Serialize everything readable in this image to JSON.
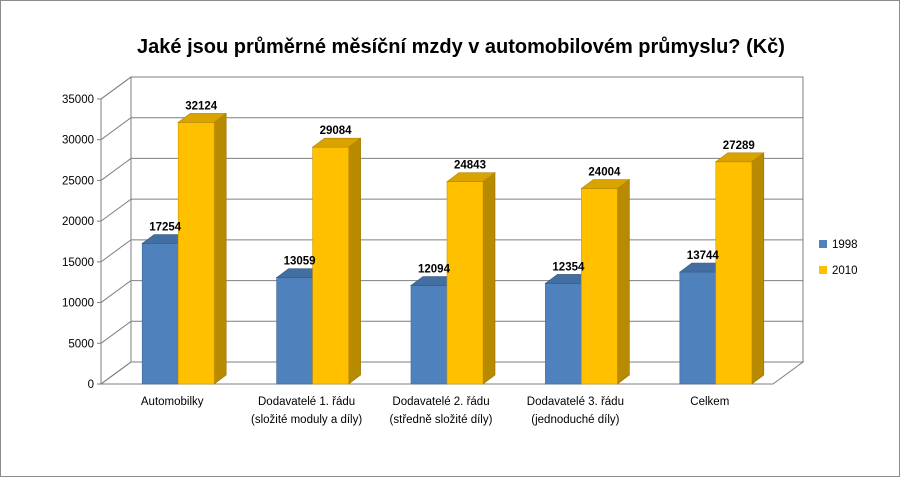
{
  "chart_data": {
    "type": "bar",
    "title": "Jaké jsou průměrné měsíční mzdy v automobilovém průmyslu? (Kč)",
    "categories": [
      [
        "Automobilky"
      ],
      [
        "Dodavatelé 1. řádu",
        "(složité moduly a díly)"
      ],
      [
        "Dodavatelé 2. řádu",
        "(středně složité díly)"
      ],
      [
        "Dodavatelé 3. řádu",
        "(jednoduché díly)"
      ],
      [
        "Celkem"
      ]
    ],
    "series": [
      {
        "name": "1998",
        "values": [
          17254,
          13059,
          12094,
          12354,
          13744
        ],
        "color": "#4f81bd"
      },
      {
        "name": "2010",
        "values": [
          32124,
          29084,
          24843,
          24004,
          27289
        ],
        "color": "#ffc000"
      }
    ],
    "ylim": [
      0,
      35000
    ],
    "yticks": [
      0,
      5000,
      10000,
      15000,
      20000,
      25000,
      30000,
      35000
    ],
    "data_labels": true,
    "grid": true,
    "legend": "right",
    "style": "3d-clustered-column"
  }
}
